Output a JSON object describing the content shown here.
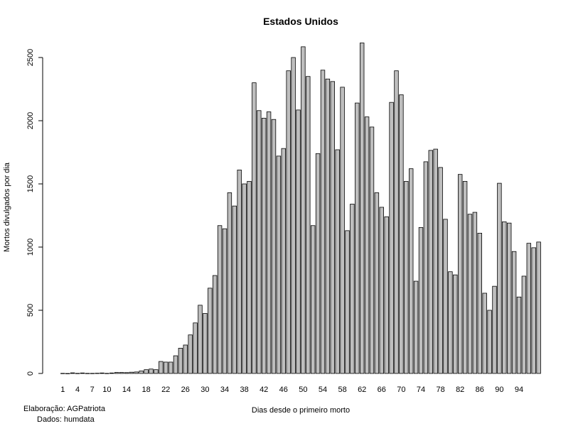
{
  "chart_data": {
    "type": "bar",
    "title": "Estados Unidos",
    "xlabel": "Dias desde o primeiro morto",
    "ylabel": "Mortos divulgados por dia",
    "ylim": [
      0,
      2700
    ],
    "yticks": [
      0,
      500,
      1000,
      1500,
      2000,
      2500
    ],
    "xtick_labels": [
      "1",
      "4",
      "7",
      "10",
      "14",
      "18",
      "22",
      "26",
      "30",
      "34",
      "38",
      "42",
      "46",
      "50",
      "54",
      "58",
      "62",
      "66",
      "70",
      "74",
      "78",
      "82",
      "86",
      "90",
      "94"
    ],
    "x": [
      1,
      2,
      3,
      4,
      5,
      6,
      7,
      8,
      9,
      10,
      11,
      12,
      13,
      14,
      15,
      16,
      17,
      18,
      19,
      20,
      21,
      22,
      23,
      24,
      25,
      26,
      27,
      28,
      29,
      30,
      31,
      32,
      33,
      34,
      35,
      36,
      37,
      38,
      39,
      40,
      41,
      42,
      43,
      44,
      45,
      46,
      47,
      48,
      49,
      50,
      51,
      52,
      53,
      54,
      55,
      56,
      57,
      58,
      59,
      60,
      61,
      62,
      63,
      64,
      65,
      66,
      67,
      68,
      69,
      70,
      71,
      72,
      73,
      74,
      75,
      76,
      77,
      78,
      79,
      80,
      81,
      82,
      83,
      84,
      85,
      86,
      87,
      88,
      89,
      90,
      91,
      92,
      93,
      94,
      95,
      96,
      97,
      98
    ],
    "values": [
      1,
      0,
      5,
      1,
      4,
      1,
      1,
      2,
      4,
      1,
      4,
      8,
      8,
      7,
      10,
      12,
      20,
      30,
      35,
      30,
      95,
      90,
      90,
      140,
      200,
      225,
      305,
      400,
      540,
      475,
      675,
      775,
      1170,
      1145,
      1430,
      1325,
      1610,
      1500,
      1520,
      2300,
      2080,
      2020,
      2070,
      2010,
      1720,
      1780,
      2395,
      2500,
      2085,
      2585,
      2350,
      1170,
      1740,
      2400,
      2330,
      2310,
      1770,
      2265,
      1130,
      1340,
      2140,
      2615,
      2030,
      1950,
      1430,
      1315,
      1240,
      2145,
      2395,
      2205,
      1520,
      1620,
      730,
      1155,
      1675,
      1765,
      1775,
      1630,
      1220,
      805,
      780,
      1575,
      1520,
      1260,
      1275,
      1110,
      635,
      500,
      690,
      1505,
      1200,
      1190,
      965,
      605,
      770,
      1030,
      995,
      1040
    ],
    "bar_color": "#bebebe",
    "bar_edge": "#000000",
    "grid": false
  },
  "credits": {
    "author": "Elaboração: AGPatriota",
    "source": "Dados: humdata"
  }
}
